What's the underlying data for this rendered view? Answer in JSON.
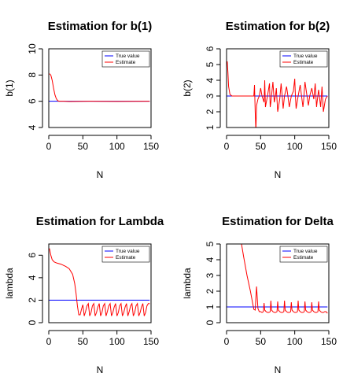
{
  "chart_data": [
    {
      "type": "line",
      "title": "Estimation for b(1)",
      "xlabel": "N",
      "ylabel": "b(1)",
      "xlim": [
        0,
        150
      ],
      "ylim": [
        4,
        10
      ],
      "xticks": [
        0,
        50,
        100,
        150
      ],
      "yticks": [
        4,
        6,
        8,
        10
      ],
      "legend": {
        "placement": "top-right",
        "entries": [
          "True value",
          "Estimate"
        ]
      },
      "series": [
        {
          "name": "True value",
          "color": "#0000ff",
          "x": [
            0,
            148
          ],
          "y": [
            6,
            6
          ]
        },
        {
          "name": "Estimate",
          "color": "#ff0000",
          "x": [
            1,
            3,
            5,
            7,
            9,
            11,
            13,
            15,
            18,
            22,
            30,
            60,
            100,
            148
          ],
          "y": [
            8.1,
            8.0,
            7.6,
            7.0,
            6.5,
            6.2,
            6.05,
            6.0,
            6.0,
            6.0,
            5.98,
            6.0,
            5.99,
            6.0
          ]
        }
      ]
    },
    {
      "type": "line",
      "title": "Estimation for b(2)",
      "xlabel": "N",
      "ylabel": "b(2)",
      "xlim": [
        0,
        150
      ],
      "ylim": [
        1,
        6
      ],
      "xticks": [
        0,
        50,
        100,
        150
      ],
      "yticks": [
        1,
        2,
        3,
        4,
        5,
        6
      ],
      "legend": {
        "placement": "top-right",
        "entries": [
          "True value",
          "Estimate"
        ]
      },
      "series": [
        {
          "name": "True value",
          "color": "#0000ff",
          "x": [
            0,
            148
          ],
          "y": [
            3,
            3
          ]
        },
        {
          "name": "Estimate",
          "color": "#ff0000",
          "x": [
            1,
            2,
            3,
            5,
            8,
            15,
            25,
            40,
            41,
            42,
            43,
            44,
            46,
            48,
            50,
            52,
            55,
            56,
            57,
            60,
            63,
            64,
            65,
            68,
            70,
            72,
            73,
            75,
            78,
            80,
            82,
            83,
            85,
            88,
            90,
            92,
            95,
            98,
            100,
            101,
            102,
            105,
            108,
            110,
            112,
            113,
            115,
            118,
            120,
            122,
            125,
            128,
            130,
            132,
            133,
            135,
            138,
            140,
            142,
            145,
            148
          ],
          "y": [
            5.2,
            4.5,
            3.6,
            3.1,
            3.0,
            3.0,
            3.0,
            3.0,
            3.7,
            2.0,
            0.8,
            2.4,
            2.8,
            3.0,
            3.5,
            3.0,
            2.6,
            4.0,
            2.3,
            3.0,
            3.8,
            2.3,
            2.6,
            3.9,
            2.6,
            3.1,
            3.5,
            2.0,
            2.8,
            3.8,
            2.8,
            2.2,
            3.0,
            3.6,
            3.0,
            2.3,
            3.0,
            3.3,
            4.1,
            3.0,
            2.2,
            3.0,
            3.7,
            3.0,
            2.3,
            2.7,
            3.9,
            3.0,
            2.4,
            3.0,
            3.5,
            2.8,
            3.8,
            2.3,
            2.7,
            3.4,
            2.3,
            3.6,
            2.0,
            2.8,
            3.0
          ]
        }
      ]
    },
    {
      "type": "line",
      "title": "Estimation for Lambda",
      "xlabel": "N",
      "ylabel": "lambda",
      "xlim": [
        0,
        150
      ],
      "ylim": [
        0,
        7
      ],
      "xticks": [
        0,
        50,
        100,
        150
      ],
      "yticks": [
        0,
        2,
        4,
        6
      ],
      "legend": {
        "placement": "top-right",
        "entries": [
          "True value",
          "Estimate"
        ]
      },
      "series": [
        {
          "name": "True value",
          "color": "#0000ff",
          "x": [
            0,
            148
          ],
          "y": [
            2,
            2
          ]
        },
        {
          "name": "Estimate",
          "color": "#ff0000",
          "x": [
            1,
            3,
            5,
            8,
            12,
            18,
            25,
            30,
            35,
            38,
            40,
            42,
            44,
            46,
            48,
            50,
            52,
            54,
            56,
            58,
            60,
            62,
            64,
            66,
            68,
            70,
            72,
            74,
            76,
            78,
            80,
            82,
            84,
            86,
            88,
            90,
            92,
            94,
            96,
            98,
            100,
            102,
            104,
            106,
            108,
            110,
            112,
            114,
            116,
            118,
            120,
            122,
            124,
            126,
            128,
            130,
            132,
            134,
            136,
            138,
            140,
            142,
            144,
            146,
            148
          ],
          "y": [
            6.6,
            6.0,
            5.6,
            5.4,
            5.3,
            5.2,
            5.0,
            4.8,
            4.3,
            3.5,
            2.6,
            1.5,
            0.7,
            0.7,
            1.2,
            1.6,
            0.6,
            1.0,
            1.5,
            1.7,
            0.6,
            0.9,
            1.5,
            1.7,
            0.6,
            0.9,
            1.4,
            1.7,
            0.6,
            0.9,
            1.5,
            1.7,
            0.6,
            1.0,
            1.5,
            1.7,
            0.6,
            0.9,
            1.4,
            1.7,
            0.6,
            0.9,
            1.5,
            1.7,
            0.6,
            0.9,
            1.4,
            1.7,
            0.6,
            1.0,
            1.5,
            1.7,
            0.6,
            0.9,
            1.5,
            1.7,
            0.6,
            0.9,
            1.4,
            1.7,
            0.6,
            0.9,
            1.5,
            1.7,
            1.7
          ]
        }
      ]
    },
    {
      "type": "line",
      "title": "Estimation for Delta",
      "xlabel": "N",
      "ylabel": "lambda",
      "xlim": [
        0,
        150
      ],
      "ylim": [
        0,
        5
      ],
      "xticks": [
        0,
        50,
        100,
        150
      ],
      "yticks": [
        0,
        1,
        2,
        3,
        4,
        5
      ],
      "legend": {
        "placement": "top-right",
        "entries": [
          "True value",
          "Estimate"
        ]
      },
      "series": [
        {
          "name": "True value",
          "color": "#0000ff",
          "x": [
            0,
            148
          ],
          "y": [
            1,
            1
          ]
        },
        {
          "name": "Estimate",
          "color": "#ff0000",
          "x": [
            20,
            25,
            30,
            35,
            38,
            40,
            42,
            43,
            44,
            45,
            46,
            48,
            50,
            52,
            54,
            55,
            56,
            58,
            60,
            62,
            64,
            65,
            66,
            68,
            70,
            72,
            74,
            75,
            76,
            78,
            80,
            82,
            84,
            85,
            86,
            88,
            90,
            92,
            94,
            95,
            96,
            98,
            100,
            102,
            104,
            105,
            106,
            108,
            110,
            112,
            114,
            115,
            116,
            118,
            120,
            122,
            124,
            125,
            126,
            128,
            130,
            132,
            134,
            135,
            136,
            138,
            140,
            142,
            144,
            146,
            148
          ],
          "y": [
            5.5,
            4.2,
            3.0,
            2.0,
            1.3,
            0.85,
            0.8,
            1.6,
            2.3,
            1.6,
            0.9,
            0.7,
            0.7,
            0.65,
            0.7,
            1.25,
            0.8,
            0.7,
            0.65,
            0.65,
            0.7,
            1.4,
            0.8,
            0.7,
            0.65,
            0.65,
            0.7,
            1.35,
            0.8,
            0.7,
            0.65,
            0.65,
            0.7,
            1.4,
            0.8,
            0.7,
            0.65,
            0.65,
            0.7,
            1.3,
            0.8,
            0.7,
            0.65,
            0.65,
            0.7,
            1.4,
            0.8,
            0.7,
            0.65,
            0.65,
            0.7,
            1.35,
            0.8,
            0.7,
            0.65,
            0.65,
            0.7,
            1.3,
            0.8,
            0.7,
            0.65,
            0.65,
            0.7,
            1.35,
            0.8,
            0.7,
            0.65,
            0.65,
            0.7,
            0.7,
            0.6
          ]
        }
      ]
    }
  ]
}
